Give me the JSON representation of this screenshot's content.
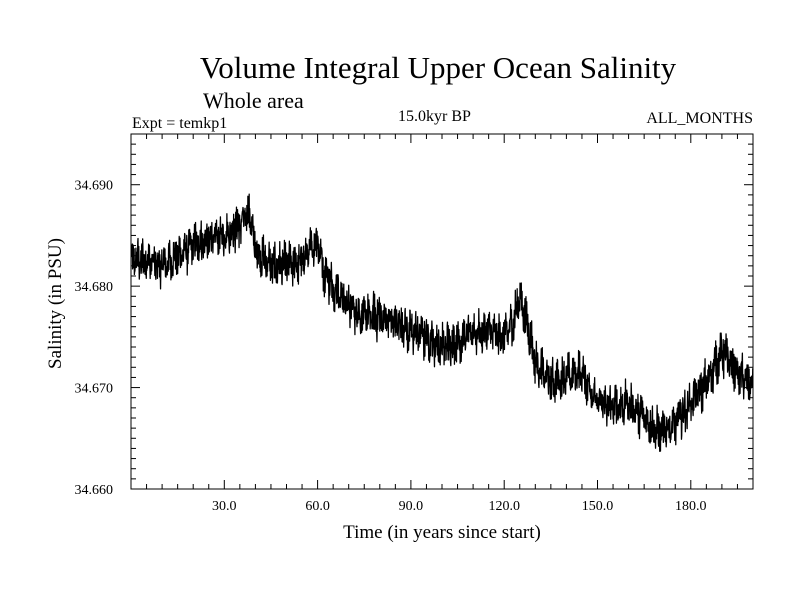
{
  "header": {
    "title": "Volume Integral Upper Ocean Salinity",
    "subtitle": "Whole area",
    "expt": "Expt = temkp1",
    "period": "15.0kyr BP",
    "months": "ALL_MONTHS"
  },
  "chart_data": {
    "type": "line",
    "title": "Volume Integral Upper Ocean Salinity",
    "xlabel": "Time (in years since start)",
    "ylabel": "Salinity (in PSU)",
    "xlim": [
      0,
      200
    ],
    "ylim": [
      34.66,
      34.695
    ],
    "x_ticks": [
      30,
      60,
      90,
      120,
      150,
      180
    ],
    "x_tick_labels": [
      "30.0",
      "60.0",
      "90.0",
      "120.0",
      "150.0",
      "180.0"
    ],
    "y_ticks": [
      34.66,
      34.67,
      34.68,
      34.69
    ],
    "y_tick_labels": [
      "34.660",
      "34.670",
      "34.680",
      "34.690"
    ],
    "series": [
      {
        "name": "Salinity",
        "x": [
          0,
          5,
          10,
          15,
          20,
          25,
          30,
          35,
          38,
          40,
          45,
          50,
          55,
          60,
          62,
          65,
          70,
          75,
          80,
          85,
          90,
          95,
          100,
          105,
          110,
          115,
          120,
          123,
          125,
          128,
          130,
          135,
          140,
          145,
          150,
          155,
          160,
          165,
          170,
          175,
          180,
          185,
          190,
          195,
          200
        ],
        "y": [
          34.6825,
          34.6825,
          34.682,
          34.683,
          34.684,
          34.6845,
          34.685,
          34.686,
          34.6875,
          34.6835,
          34.682,
          34.682,
          34.6825,
          34.6845,
          34.6815,
          34.68,
          34.678,
          34.677,
          34.677,
          34.6765,
          34.6755,
          34.675,
          34.674,
          34.6745,
          34.6755,
          34.6755,
          34.675,
          34.6765,
          34.679,
          34.6755,
          34.6725,
          34.6705,
          34.671,
          34.6715,
          34.6685,
          34.668,
          34.6685,
          34.667,
          34.6655,
          34.6665,
          34.6685,
          34.6705,
          34.6735,
          34.6715,
          34.67
        ]
      }
    ]
  }
}
